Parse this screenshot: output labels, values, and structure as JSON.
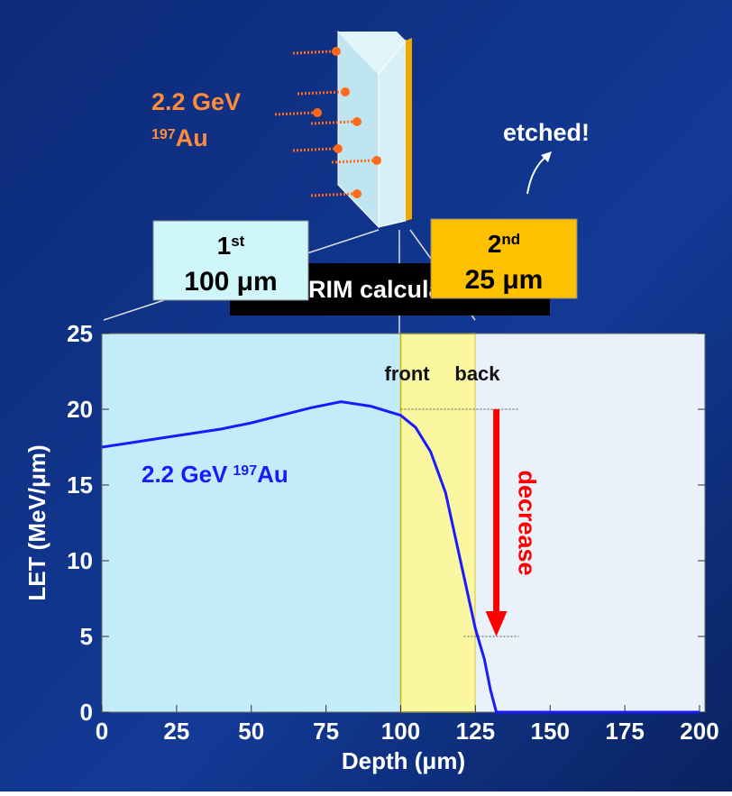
{
  "chart_data": {
    "type": "line",
    "x_label": "Depth (μm)",
    "y_label": "LET (MeV/μm)",
    "x": [
      0,
      10,
      20,
      30,
      40,
      50,
      60,
      70,
      80,
      90,
      100,
      105,
      110,
      115,
      120,
      125,
      128,
      130,
      132,
      150,
      175,
      200
    ],
    "series": [
      {
        "name": "2.2 GeV",
        "name_sup": "197",
        "name_tail": "Au",
        "color": "#1a1aff",
        "values": [
          17.5,
          17.8,
          18.1,
          18.4,
          18.7,
          19.1,
          19.6,
          20.1,
          20.5,
          20.2,
          19.6,
          18.8,
          17.2,
          14.5,
          10,
          5.5,
          3.5,
          1.5,
          0,
          0,
          0,
          0
        ]
      }
    ],
    "xlim": [
      0,
      200
    ],
    "ylim": [
      0,
      25
    ],
    "xticks": [
      0,
      25,
      50,
      75,
      100,
      125,
      150,
      175,
      200
    ],
    "yticks": [
      0,
      5,
      10,
      15,
      20,
      25
    ],
    "regions": [
      {
        "from": 0,
        "to": 100,
        "color": "#c3ecfa"
      },
      {
        "from": 100,
        "to": 125,
        "color": "#fbf7a0",
        "label": "front"
      },
      {
        "from": 125,
        "to": 200,
        "color": "#e9f1fb",
        "label": "back"
      }
    ],
    "arrow": {
      "x": 132,
      "from": 20,
      "to": 5,
      "label": "decrease",
      "color": "#ff0000"
    },
    "annotations": {
      "beam": {
        "text": "2.2 GeV",
        "sup": "197",
        "tail": "Au"
      },
      "etched": "etched!",
      "first": {
        "text": "1",
        "sup": "st",
        "thickness": "100 μm"
      },
      "second": {
        "text": "2",
        "sup": "nd",
        "thickness": "25 μm"
      },
      "method": "SRIM calculation"
    }
  }
}
